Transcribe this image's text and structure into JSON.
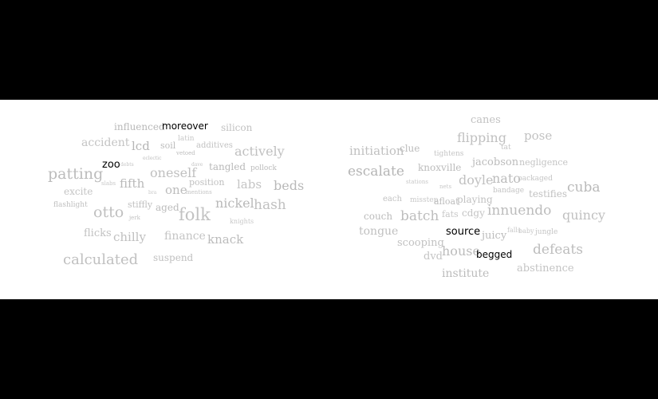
{
  "colors": {
    "background": "#000000",
    "panel": "#ffffff",
    "muted_word": "#b5b5b5",
    "highlight_word": "#000000"
  },
  "left_cloud": {
    "words": [
      "influenced",
      "moreover",
      "silicon",
      "accident",
      "lcd",
      "soil",
      "latin",
      "additives",
      "actively",
      "vetoed",
      "eclectic",
      "zoo",
      "debts",
      "dave",
      "tangled",
      "pollock",
      "patting",
      "oneself",
      "labs",
      "beds",
      "slabs",
      "fifth",
      "position",
      "excite",
      "one",
      "bra",
      "mentions",
      "flashlight",
      "stiffly",
      "nickel",
      "hash",
      "otto",
      "aged",
      "folk",
      "jerk",
      "knights",
      "flicks",
      "chilly",
      "finance",
      "knack",
      "calculated",
      "suspend"
    ]
  },
  "right_cloud": {
    "words": [
      "canes",
      "flipping",
      "pose",
      "initiation",
      "clue",
      "tat",
      "tightens",
      "jacobson",
      "negligence",
      "escalate",
      "knoxville",
      "doyle",
      "nato",
      "packaged",
      "stations",
      "nets",
      "bandage",
      "testifies",
      "cuba",
      "each",
      "misstep",
      "afloat",
      "playing",
      "couch",
      "batch",
      "fats",
      "cdgy",
      "innuendo",
      "quincy",
      "tongue",
      "source",
      "juicy",
      "falls",
      "baby",
      "jungle",
      "scooping",
      "defeats",
      "dvd",
      "house",
      "begged",
      "institute",
      "abstinence"
    ]
  }
}
